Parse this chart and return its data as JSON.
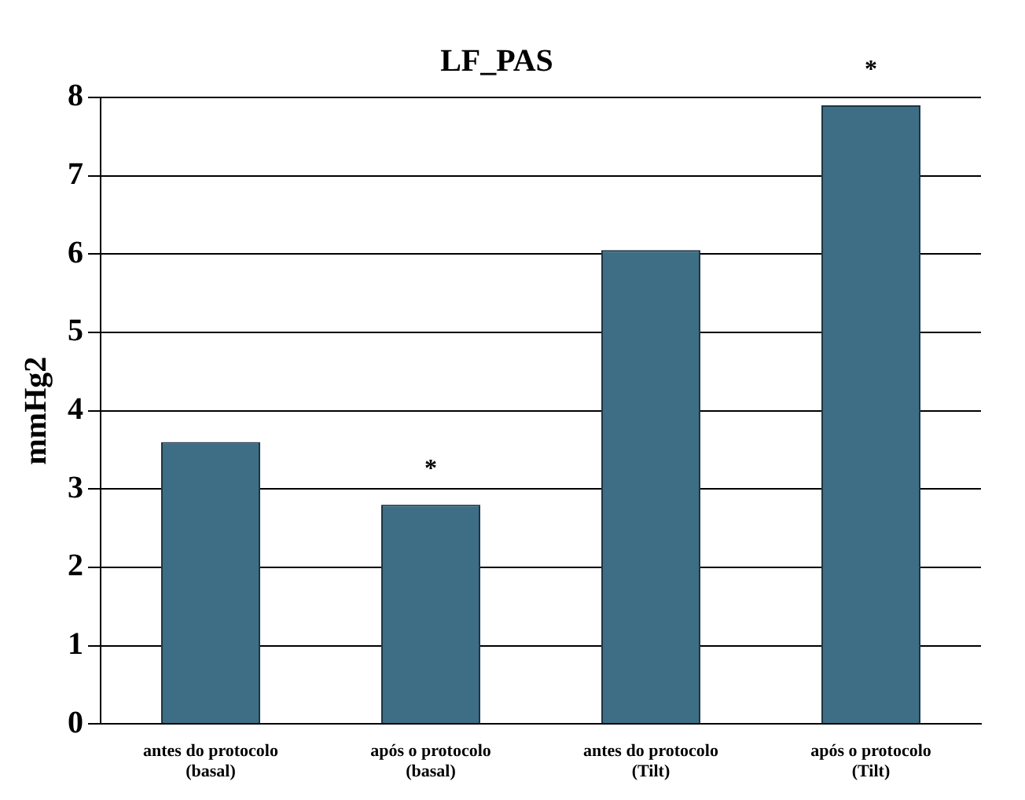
{
  "chart_data": {
    "type": "bar",
    "title": "LF_PAS",
    "ylabel": "mmHg2",
    "categories": [
      "antes do protocolo (basal)",
      "após o protocolo (basal)",
      "antes do protocolo (Tilt)",
      "após o protocolo (Tilt)"
    ],
    "values": [
      3.6,
      2.8,
      6.05,
      7.9
    ],
    "color": "#3d6e86",
    "ylim": [
      0,
      8
    ],
    "yticks": [
      0,
      1,
      2,
      3,
      4,
      5,
      6,
      7,
      8
    ],
    "grid": "y",
    "annotations": [
      {
        "text": "*",
        "x": "após o protocolo (basal)",
        "y": 2.8
      },
      {
        "text": "*",
        "x": "após o protocolo (Tilt)",
        "y": 7.9
      }
    ]
  }
}
